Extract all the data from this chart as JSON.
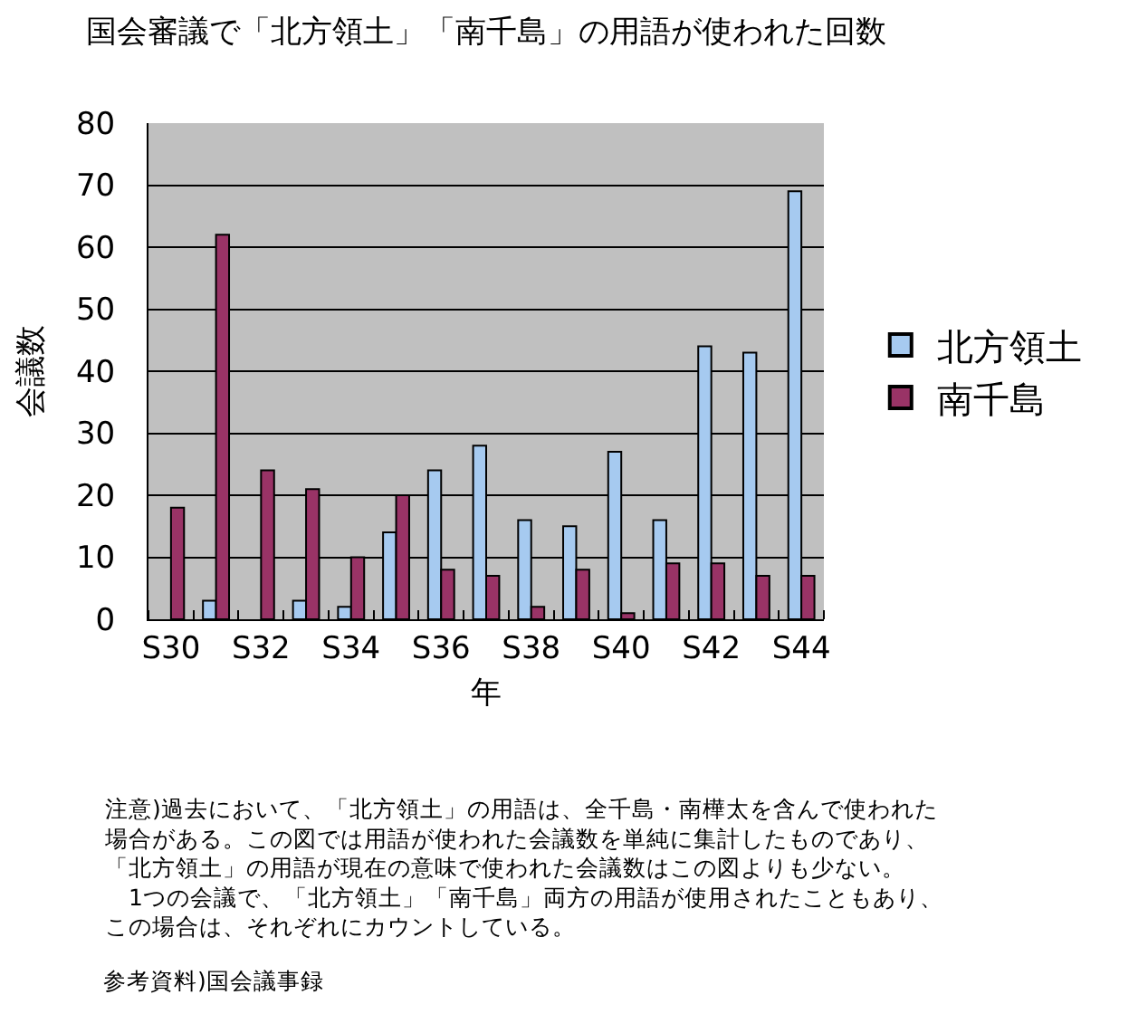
{
  "chart_data": {
    "type": "bar",
    "title": "国会審議で「北方領土」「南千島」の用語が使われた回数",
    "xlabel": "年",
    "ylabel": "会議数",
    "categories": [
      "S30",
      null,
      "S32",
      null,
      "S34",
      null,
      "S36",
      null,
      "S38",
      null,
      "S40",
      null,
      "S42",
      null,
      "S44"
    ],
    "series": [
      {
        "name": "北方領土",
        "color": "#a6caf0",
        "values": [
          0,
          3,
          0,
          3,
          2,
          14,
          24,
          28,
          16,
          15,
          27,
          16,
          44,
          43,
          69
        ]
      },
      {
        "name": "南千島",
        "color": "#993366",
        "values": [
          18,
          62,
          24,
          21,
          10,
          20,
          8,
          7,
          2,
          8,
          1,
          9,
          9,
          7,
          7
        ]
      }
    ],
    "ylim": [
      0,
      80
    ],
    "yticks": [
      0,
      10,
      20,
      30,
      40,
      50,
      60,
      70,
      80
    ],
    "grid": "y",
    "legend": "right",
    "annotations": [
      "注意)過去において、「北方領土」の用語は、全千島・南樺太を含んで使われた場合がある。この図では用語が使われた会議数を単純に集計したものであり、「北方領土」の用語が現在の意味で使われた会議数はこの図よりも少ない。",
      "　1つの会議で、「北方領土」「南千島」両方の用語が使用されたこともあり、この場合は、それぞれにカウントしている。",
      "参考資料)国会議事録"
    ]
  }
}
